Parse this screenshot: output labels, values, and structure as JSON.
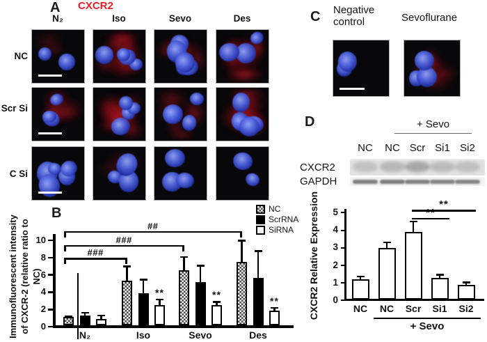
{
  "colors": {
    "accent_red": "#ed1c24",
    "ink": "#000000"
  },
  "panel_a": {
    "label": "A",
    "title": "CXCR2",
    "columns": [
      "N₂",
      "Iso",
      "Sevo",
      "Des"
    ],
    "rows": [
      "NC",
      "Scr Si",
      "C Si"
    ],
    "images": [
      {
        "row": "NC",
        "col": "N₂",
        "red": "low",
        "nuclei": 2,
        "scale_bar": true
      },
      {
        "row": "NC",
        "col": "Iso",
        "red": "high",
        "nuclei": 4,
        "scale_bar": false
      },
      {
        "row": "NC",
        "col": "Sevo",
        "red": "medium",
        "nuclei": 5,
        "scale_bar": false
      },
      {
        "row": "NC",
        "col": "Des",
        "red": "high",
        "nuclei": 3,
        "scale_bar": false
      },
      {
        "row": "Scr Si",
        "col": "N₂",
        "red": "medium",
        "nuclei": 3,
        "scale_bar": true
      },
      {
        "row": "Scr Si",
        "col": "Iso",
        "red": "high",
        "nuclei": 4,
        "scale_bar": false
      },
      {
        "row": "Scr Si",
        "col": "Sevo",
        "red": "medium",
        "nuclei": 4,
        "scale_bar": false
      },
      {
        "row": "Scr Si",
        "col": "Des",
        "red": "high",
        "nuclei": 6,
        "scale_bar": false
      },
      {
        "row": "C Si",
        "col": "N₂",
        "red": "none",
        "nuclei": 5,
        "scale_bar": true
      },
      {
        "row": "C Si",
        "col": "Iso",
        "red": "low",
        "nuclei": 3,
        "scale_bar": false
      },
      {
        "row": "C Si",
        "col": "Sevo",
        "red": "none",
        "nuclei": 3,
        "scale_bar": false
      },
      {
        "row": "C Si",
        "col": "Des",
        "red": "none",
        "nuclei": 2,
        "scale_bar": false
      }
    ]
  },
  "panel_c": {
    "label": "C",
    "conditions": [
      "Negative control",
      "Sevoflurane"
    ],
    "images": [
      {
        "col": "Negative control",
        "red": "none",
        "nuclei": 2,
        "scale_bar": true
      },
      {
        "col": "Sevoflurane",
        "red": "medium",
        "nuclei": 3,
        "scale_bar": false
      }
    ]
  },
  "panel_d": {
    "label": "D",
    "treatment_header": "+ Sevo",
    "lanes": [
      "NC",
      "NC",
      "Scr",
      "Si1",
      "Si2"
    ],
    "blot_rows": [
      {
        "name": "CXCR2",
        "band_intensities": [
          0.35,
          0.45,
          0.62,
          0.4,
          0.36
        ]
      },
      {
        "name": "GAPDH",
        "band_intensities": [
          0.8,
          0.82,
          0.75,
          0.72,
          0.68
        ]
      }
    ]
  },
  "chart_data": [
    {
      "id": "panel_b",
      "panel_label": "B",
      "type": "bar",
      "ylabel_line1": "Immunofluorescent intensity",
      "ylabel_line2": "of CXCR-2 (relative ratio to NC)",
      "categories": [
        "N₂",
        "Iso",
        "Sevo",
        "Des"
      ],
      "series": [
        {
          "name": "NC",
          "style": "checker",
          "values": [
            1.0,
            5.2,
            6.4,
            7.3
          ],
          "errors": [
            0.15,
            1.7,
            1.6,
            2.6
          ],
          "sig": [
            "",
            "",
            "",
            ""
          ]
        },
        {
          "name": "ScrRNA",
          "style": "black",
          "values": [
            1.15,
            3.7,
            5.0,
            5.5
          ],
          "errors": [
            0.4,
            1.7,
            2.0,
            3.2
          ],
          "sig": [
            "",
            "",
            "",
            ""
          ]
        },
        {
          "name": "SiRNA",
          "style": "white",
          "values": [
            0.75,
            2.3,
            2.3,
            1.7
          ],
          "errors": [
            0.5,
            0.8,
            0.5,
            0.4
          ],
          "sig": [
            "",
            "**",
            "**",
            "**"
          ]
        }
      ],
      "ylim": [
        0,
        10
      ],
      "yticks": [
        0,
        2,
        4,
        6,
        8,
        10
      ],
      "legend_position": "top-right",
      "grid": false,
      "brackets": [
        {
          "label": "###",
          "from": 0,
          "to": 1,
          "y": 7.8
        },
        {
          "label": "###",
          "from": 0,
          "to": 2,
          "y": 9.3
        },
        {
          "label": "##",
          "from": 0,
          "to": 3,
          "y": 10.9
        }
      ]
    },
    {
      "id": "panel_d_chart",
      "type": "bar",
      "ylabel": "CXCR2 Relative Expression",
      "categories": [
        "NC",
        "NC",
        "Scr",
        "Si1",
        "Si2"
      ],
      "values": [
        1.15,
        2.95,
        3.85,
        1.25,
        0.85
      ],
      "errors": [
        0.2,
        0.35,
        0.65,
        0.2,
        0.18
      ],
      "ylim": [
        0,
        5
      ],
      "yticks": [
        0,
        1,
        2,
        3,
        4,
        5
      ],
      "grid": false,
      "brackets": [
        {
          "label": "**",
          "from": 2,
          "to": 3,
          "y": 4.65
        },
        {
          "label": "**",
          "from": 2,
          "to": 4,
          "y": 5.1
        }
      ],
      "xgroup": {
        "label": "+ Sevo",
        "from": 1,
        "to": 4
      }
    }
  ]
}
